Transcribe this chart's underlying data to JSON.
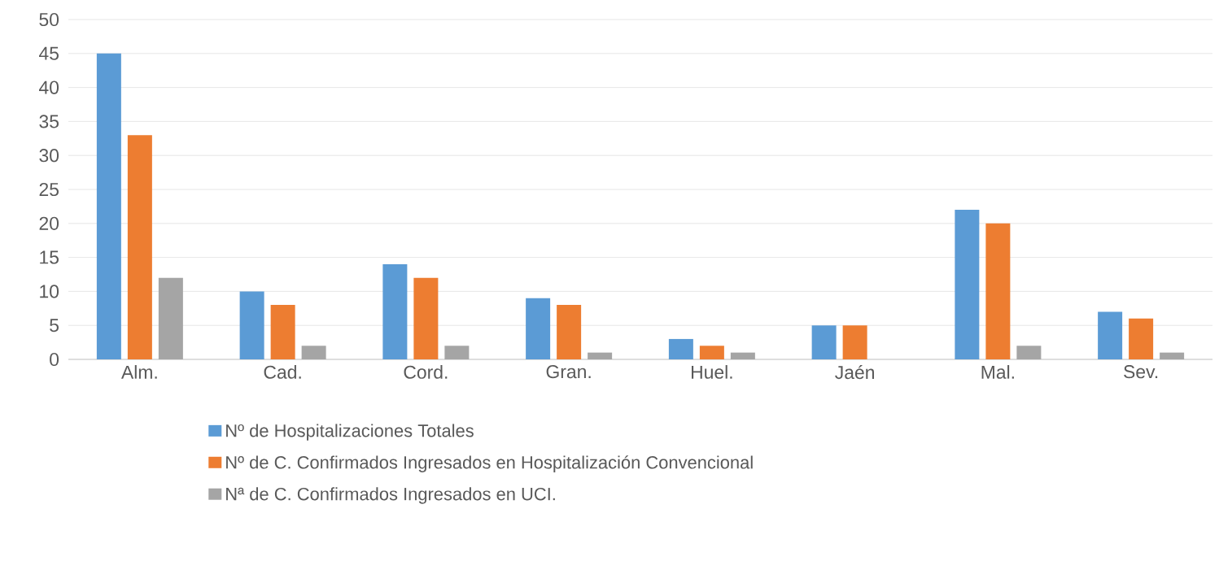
{
  "chart_data": {
    "type": "bar",
    "categories": [
      "Alm.",
      "Cad.",
      "Cord.",
      "Gran.",
      "Huel.",
      "Jaén",
      "Mal.",
      "Sev."
    ],
    "series": [
      {
        "name": "Nº de Hospitalizaciones Totales",
        "color": "#5b9bd5",
        "values": [
          45,
          10,
          14,
          9,
          3,
          5,
          22,
          7
        ]
      },
      {
        "name": "Nº de C. Confirmados Ingresados en Hospitalización Convencional",
        "color": "#ed7d31",
        "values": [
          33,
          8,
          12,
          8,
          2,
          5,
          20,
          6
        ]
      },
      {
        "name": "Nª de C. Confirmados Ingresados en UCI.",
        "color": "#a5a5a5",
        "values": [
          12,
          2,
          2,
          1,
          1,
          0,
          2,
          1
        ]
      }
    ],
    "ylim": [
      0,
      50
    ],
    "yticks": [
      0,
      5,
      10,
      15,
      20,
      25,
      30,
      35,
      40,
      45,
      50
    ],
    "grid": "y",
    "legend": "bottom"
  }
}
